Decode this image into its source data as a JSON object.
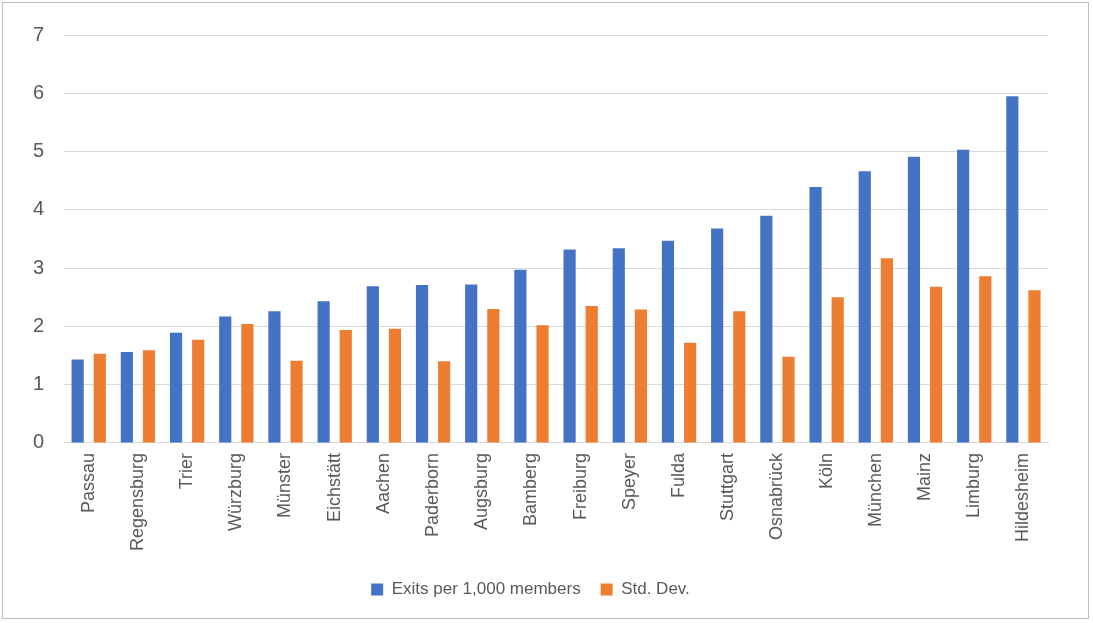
{
  "chart_data": {
    "type": "bar",
    "categories": [
      "Passau",
      "Regensburg",
      "Trier",
      "Würzburg",
      "Münster",
      "Eichstätt",
      "Aachen",
      "Paderborn",
      "Augsburg",
      "Bamberg",
      "Freiburg",
      "Speyer",
      "Fulda",
      "Stuttgart",
      "Osnabrück",
      "Köln",
      "München",
      "Mainz",
      "Limburg",
      "Hildesheim"
    ],
    "series": [
      {
        "name": "Exits per 1,000 members",
        "color": "#4472c4",
        "values": [
          1.43,
          1.56,
          1.89,
          2.17,
          2.26,
          2.43,
          2.69,
          2.71,
          2.72,
          2.97,
          3.32,
          3.34,
          3.47,
          3.68,
          3.9,
          4.39,
          4.66,
          4.91,
          5.03,
          5.95
        ]
      },
      {
        "name": "Std. Dev.",
        "color": "#ed7d31",
        "values": [
          1.53,
          1.59,
          1.77,
          2.04,
          1.41,
          1.94,
          1.96,
          1.4,
          2.3,
          2.02,
          2.35,
          2.29,
          1.72,
          2.26,
          1.48,
          2.5,
          3.17,
          2.68,
          2.86,
          2.62
        ]
      }
    ],
    "ylim": [
      0,
      7
    ],
    "yticks": [
      0,
      1,
      2,
      3,
      4,
      5,
      6,
      7
    ],
    "grid": "y",
    "legend": "bottom"
  }
}
